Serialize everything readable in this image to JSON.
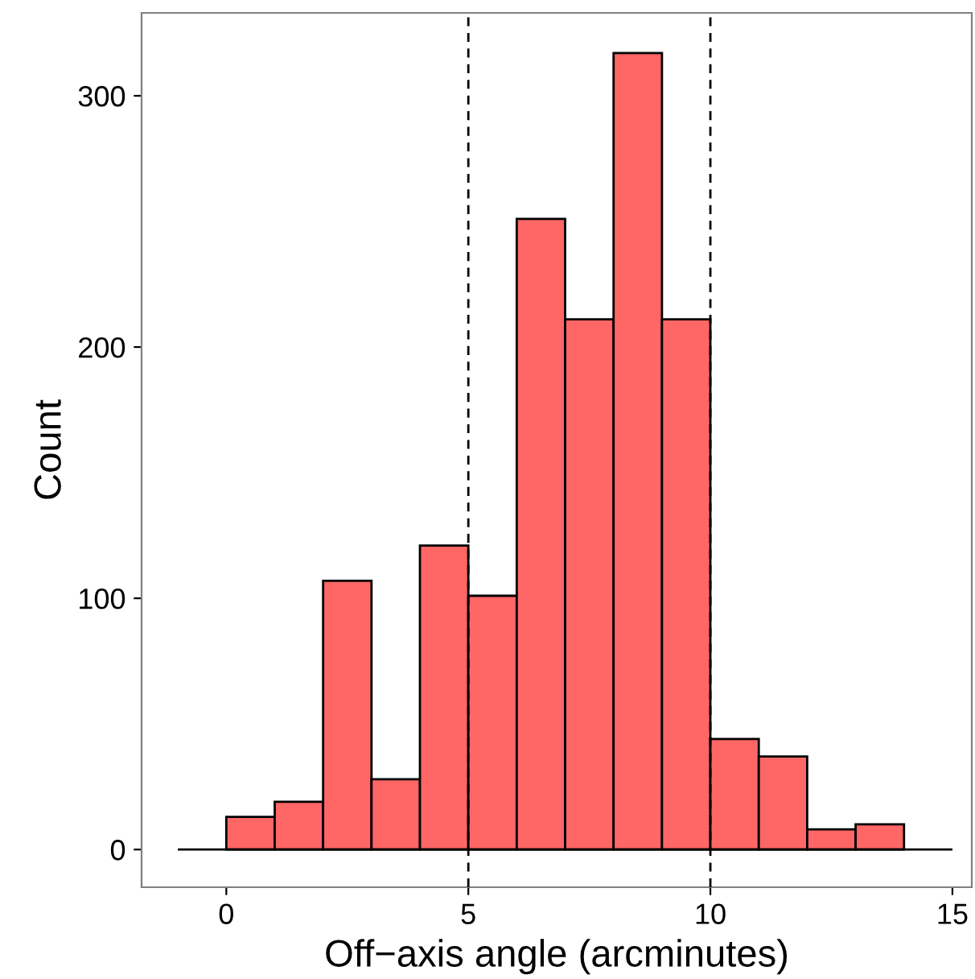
{
  "chart_data": {
    "type": "histogram",
    "xlabel": "Off−axis angle (arcminutes)",
    "ylabel": "Count",
    "bins": [
      0,
      1,
      2,
      3,
      4,
      5,
      6,
      7,
      8,
      9,
      10,
      11,
      12,
      13,
      14
    ],
    "values": [
      13,
      19,
      107,
      28,
      121,
      101,
      251,
      211,
      317,
      211,
      44,
      37,
      8,
      10
    ],
    "color": "#ff6666",
    "xlim": [
      -1.75,
      15.4
    ],
    "ylim": [
      -15,
      333
    ],
    "xticks": [
      0,
      5,
      10,
      15
    ],
    "yticks": [
      0,
      100,
      200,
      300
    ],
    "ref_lines": [
      {
        "axis": "x",
        "value": 5,
        "line_style": "dashed",
        "color": "#000000"
      },
      {
        "axis": "x",
        "value": 10,
        "line_style": "dashed",
        "color": "#000000"
      },
      {
        "axis": "y",
        "value": 0,
        "line_style": "solid",
        "color": "#000000"
      }
    ],
    "grid": false,
    "legend": false
  }
}
